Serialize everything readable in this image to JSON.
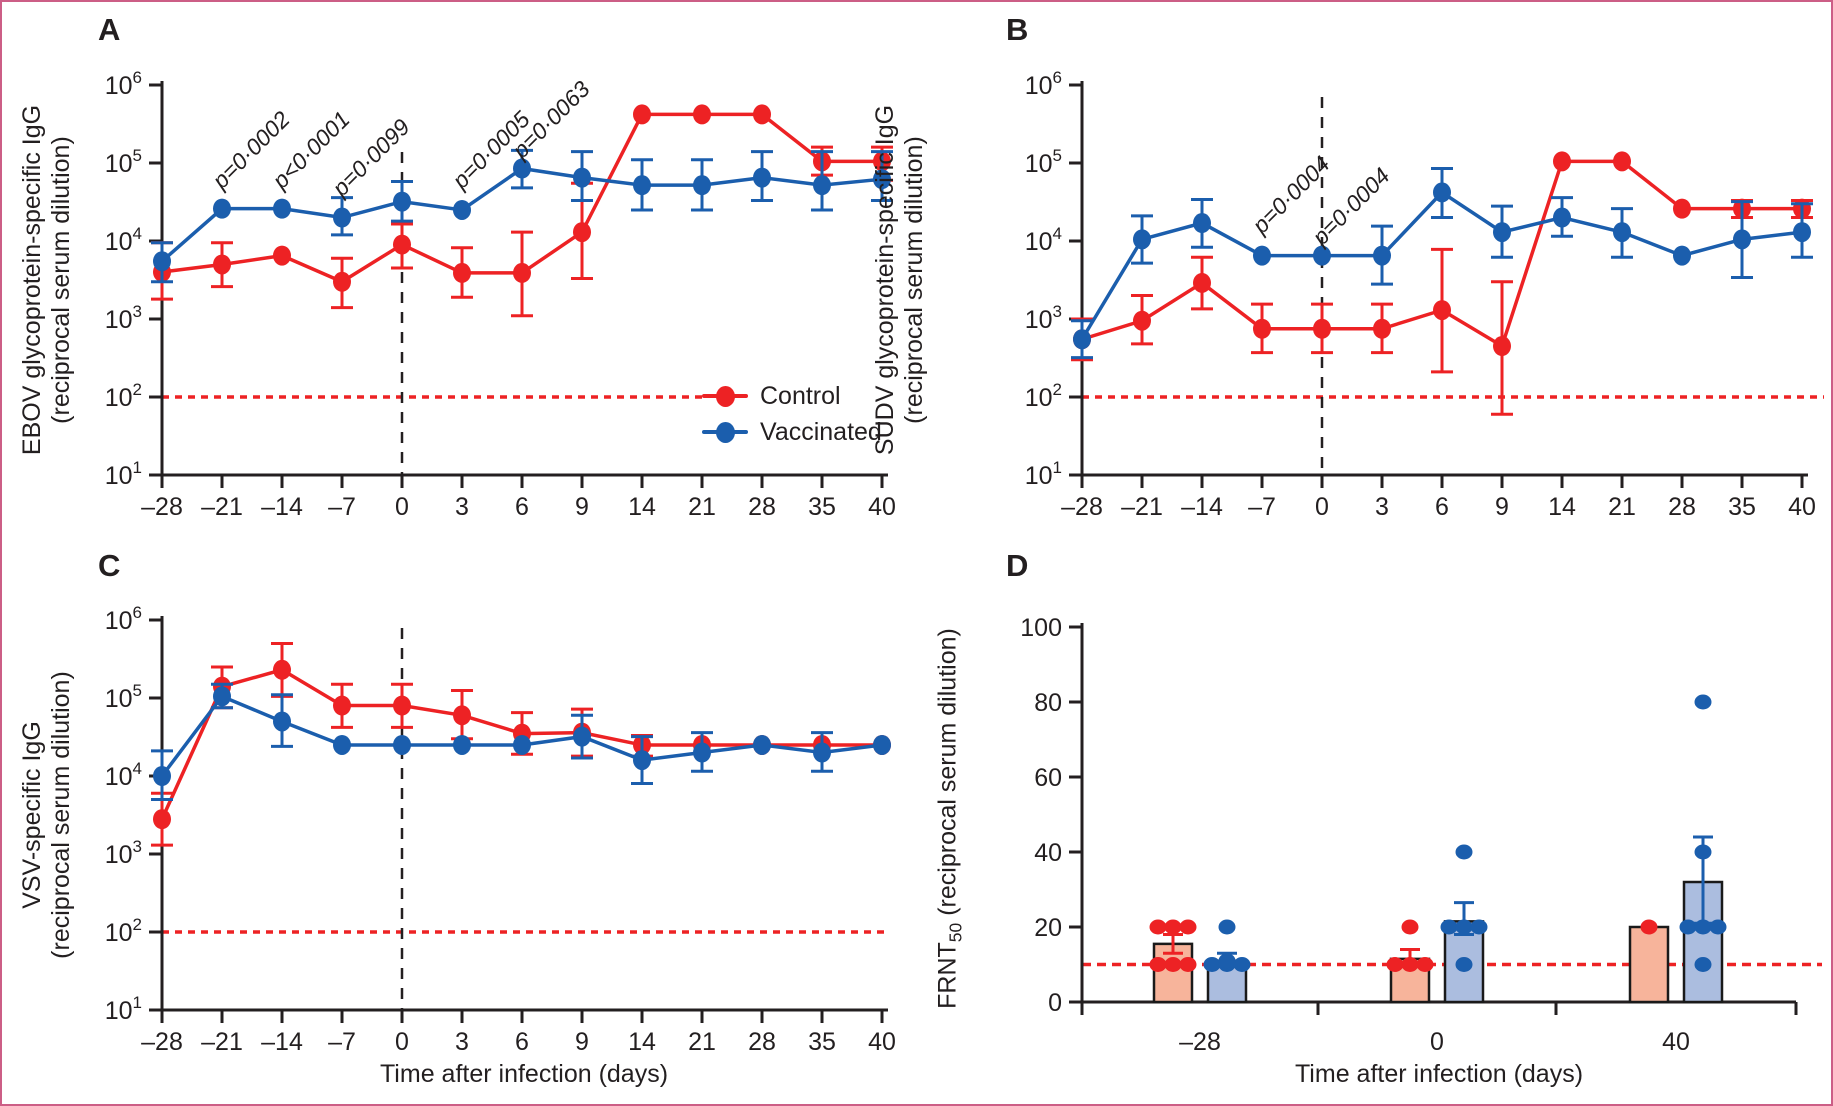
{
  "figure": {
    "frame_color": "#CC5E86",
    "background": "#FFFFFF",
    "colors": {
      "control": "#ED2224",
      "vaccinated": "#1B5EAD",
      "control_fill": "#F7B49B",
      "vaccinated_fill": "#ABBDDF",
      "bar_outline": "#1A1A1A",
      "axis": "#231F20"
    },
    "legend": [
      {
        "label": "Control",
        "color": "control"
      },
      {
        "label": "Vaccinated",
        "color": "vaccinated"
      }
    ]
  },
  "chart_data": [
    {
      "id": "A",
      "panel_label": "A",
      "type": "line",
      "yscale": "log",
      "ylim": [
        10,
        1000000
      ],
      "ytick_exponents": [
        6,
        5,
        4,
        3,
        2,
        1
      ],
      "ylabel_line1": "EBOV glycoprotein-specific IgG",
      "ylabel_line2": "(reciprocal serum dilution)",
      "xlabel": "",
      "categories": [
        "–28",
        "–21",
        "–14",
        "–7",
        "0",
        "3",
        "6",
        "9",
        "14",
        "21",
        "28",
        "35",
        "40"
      ],
      "vline_at": "0",
      "threshold": 100,
      "show_legend": true,
      "series": [
        {
          "name": "Control",
          "color": "control",
          "values": [
            4000,
            5000,
            6500,
            3000,
            9000,
            3900,
            3900,
            13000,
            420000,
            420000,
            420000,
            105000,
            105000
          ],
          "err_lo": [
            1800,
            2600,
            6500,
            1400,
            4500,
            1900,
            1100,
            3300,
            420000,
            420000,
            420000,
            70000,
            60000
          ],
          "err_hi": [
            9500,
            9500,
            6500,
            6000,
            16500,
            8200,
            13000,
            55000,
            420000,
            420000,
            420000,
            160000,
            160000
          ]
        },
        {
          "name": "Vaccinated",
          "color": "vaccinated",
          "values": [
            5500,
            26000,
            26000,
            20000,
            32000,
            25000,
            85000,
            65000,
            52000,
            52000,
            65000,
            52000,
            62000
          ],
          "err_lo": [
            3000,
            26000,
            26000,
            12000,
            18000,
            25000,
            48000,
            33000,
            25000,
            25000,
            33000,
            25000,
            33000
          ],
          "err_hi": [
            9500,
            26000,
            26000,
            36000,
            58000,
            25000,
            145000,
            140000,
            110000,
            110000,
            140000,
            140000,
            140000
          ]
        }
      ],
      "p_labels": [
        {
          "text": "p=0·0002",
          "x": "–21",
          "y": 45000
        },
        {
          "text": "p<0·0001",
          "x": "–14",
          "y": 45000
        },
        {
          "text": "p=0·0099",
          "x": "–7",
          "y": 36000
        },
        {
          "text": "p=0·0005",
          "x": "3",
          "y": 45000
        },
        {
          "text": "p=0·0063",
          "x": "6",
          "y": 110000
        }
      ]
    },
    {
      "id": "B",
      "panel_label": "B",
      "type": "line",
      "yscale": "log",
      "ylim": [
        10,
        1000000
      ],
      "ytick_exponents": [
        6,
        5,
        4,
        3,
        2,
        1
      ],
      "ylabel_line1": "SUDV glycoprotein-specific IgG",
      "ylabel_line2": "(reciprocal serum dilution)",
      "xlabel": "",
      "categories": [
        "–28",
        "–21",
        "–14",
        "–7",
        "0",
        "3",
        "6",
        "9",
        "14",
        "21",
        "28",
        "35",
        "40"
      ],
      "vline_at": "0",
      "threshold": 100,
      "show_legend": false,
      "series": [
        {
          "name": "Control",
          "color": "control",
          "values": [
            550,
            950,
            2900,
            750,
            750,
            750,
            1300,
            450,
            105000,
            105000,
            26000,
            26000,
            26000
          ],
          "err_lo": [
            300,
            480,
            1350,
            370,
            370,
            370,
            210,
            60,
            105000,
            105000,
            26000,
            20000,
            20000
          ],
          "err_hi": [
            1000,
            2000,
            6200,
            1550,
            1550,
            1550,
            7800,
            3000,
            105000,
            105000,
            26000,
            33000,
            33000
          ]
        },
        {
          "name": "Vaccinated",
          "color": "vaccinated",
          "values": [
            550,
            10500,
            17000,
            6500,
            6500,
            6500,
            42000,
            13000,
            20000,
            13000,
            6500,
            10500,
            13000
          ],
          "err_lo": [
            320,
            5200,
            8300,
            6500,
            6500,
            2800,
            20000,
            6200,
            11500,
            6200,
            6500,
            3400,
            6200
          ],
          "err_hi": [
            950,
            21000,
            34000,
            6500,
            6500,
            15500,
            85000,
            28000,
            36000,
            26000,
            6500,
            32000,
            30000
          ]
        }
      ],
      "p_labels": [
        {
          "text": "p=0·0004",
          "x": "–7",
          "y": 12000
        },
        {
          "text": "p=0·0004",
          "x": "0",
          "y": 8500
        }
      ]
    },
    {
      "id": "C",
      "panel_label": "C",
      "type": "line",
      "yscale": "log",
      "ylim": [
        10,
        1000000
      ],
      "ytick_exponents": [
        6,
        5,
        4,
        3,
        2,
        1
      ],
      "ylabel_line1": "VSV-specific IgG",
      "ylabel_line2": "(reciprocal serum dilution)",
      "xlabel": "Time after infection (days)",
      "categories": [
        "–28",
        "–21",
        "–14",
        "–7",
        "0",
        "3",
        "6",
        "9",
        "14",
        "21",
        "28",
        "35",
        "40"
      ],
      "vline_at": "0",
      "threshold": 100,
      "show_legend": false,
      "series": [
        {
          "name": "Control",
          "color": "control",
          "values": [
            2800,
            140000,
            230000,
            80000,
            80000,
            60000,
            35000,
            36000,
            25000,
            25000,
            25000,
            25000,
            25000
          ],
          "err_lo": [
            1300,
            75000,
            105000,
            42000,
            42000,
            30000,
            19000,
            18000,
            18000,
            25000,
            25000,
            25000,
            25000
          ],
          "err_hi": [
            6000,
            250000,
            500000,
            150000,
            150000,
            125000,
            65000,
            72000,
            33000,
            25000,
            25000,
            25000,
            25000
          ]
        },
        {
          "name": "Vaccinated",
          "color": "vaccinated",
          "values": [
            10000,
            105000,
            50000,
            25000,
            25000,
            25000,
            25000,
            32000,
            16000,
            20000,
            25000,
            20000,
            25000
          ],
          "err_lo": [
            5000,
            75000,
            24000,
            25000,
            25000,
            25000,
            25000,
            17000,
            8000,
            11500,
            25000,
            11500,
            25000
          ],
          "err_hi": [
            21000,
            150000,
            110000,
            25000,
            25000,
            25000,
            25000,
            60000,
            32000,
            36000,
            25000,
            36000,
            25000
          ]
        }
      ],
      "p_labels": []
    },
    {
      "id": "D",
      "panel_label": "D",
      "type": "bar-scatter",
      "yscale": "linear",
      "ylim": [
        0,
        100
      ],
      "yticks": [
        0,
        20,
        40,
        60,
        80,
        100
      ],
      "ylabel_prefix": "FRNT",
      "ylabel_sub": "50",
      "ylabel_suffix": " (reciprocal serum dilution)",
      "xlabel": "Time after infection (days)",
      "categories": [
        "–28",
        "0",
        "40"
      ],
      "threshold": 10,
      "groups": [
        {
          "category": "–28",
          "bars": [
            {
              "series": "Control",
              "color": "control",
              "fill": "control_fill",
              "mean": 15.5,
              "err_lo": 13,
              "err_hi": 18,
              "points": [
                20,
                20,
                20,
                10,
                10,
                10
              ]
            },
            {
              "series": "Vaccinated",
              "color": "vaccinated",
              "fill": "vaccinated_fill",
              "mean": 11,
              "err_lo": 9.5,
              "err_hi": 13,
              "points": [
                20,
                11,
                10,
                10,
                10
              ]
            }
          ]
        },
        {
          "category": "0",
          "bars": [
            {
              "series": "Control",
              "color": "control",
              "fill": "control_fill",
              "mean": 11.5,
              "err_lo": 9.5,
              "err_hi": 14,
              "points": [
                20,
                10,
                10,
                10
              ]
            },
            {
              "series": "Vaccinated",
              "color": "vaccinated",
              "fill": "vaccinated_fill",
              "mean": 21.5,
              "err_lo": 18,
              "err_hi": 26.5,
              "points": [
                40,
                20,
                20,
                20,
                10
              ]
            }
          ]
        },
        {
          "category": "40",
          "bars": [
            {
              "series": "Control",
              "color": "control",
              "fill": "control_fill",
              "mean": 20,
              "err_lo": 20,
              "err_hi": 20,
              "points": [
                20
              ]
            },
            {
              "series": "Vaccinated",
              "color": "vaccinated",
              "fill": "vaccinated_fill",
              "mean": 32,
              "err_lo": 21,
              "err_hi": 44,
              "points": [
                80,
                40,
                20,
                20,
                20,
                10
              ]
            }
          ]
        }
      ]
    }
  ]
}
